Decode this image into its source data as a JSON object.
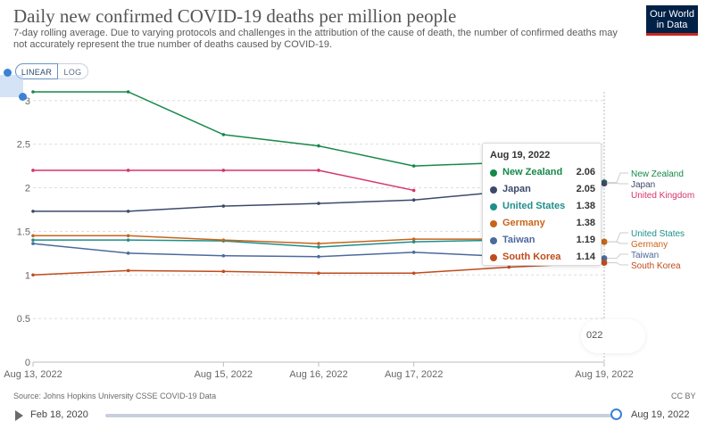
{
  "header": {
    "title": "Daily new confirmed COVID-19 deaths per million people",
    "subtitle": "7-day rolling average. Due to varying protocols and challenges in the attribution of the cause of death, the number of confirmed deaths may not accurately represent the true number of deaths caused by COVID-19.",
    "logo_line1": "Our World",
    "logo_line2": "in Data"
  },
  "controls": {
    "linear_label": "LINEAR",
    "log_label": "LOG",
    "active": "LINEAR"
  },
  "footer": {
    "source": "Source: Johns Hopkins University CSSE COVID-19 Data",
    "license": "CC BY"
  },
  "timeline": {
    "start_label": "Feb 18, 2020",
    "end_label": "Aug 19, 2022"
  },
  "tooltip": {
    "date": "Aug 19, 2022",
    "rows": [
      {
        "name": "New Zealand",
        "value": "2.06",
        "color": "#17884a"
      },
      {
        "name": "Japan",
        "value": "2.05",
        "color": "#3b4a6b"
      },
      {
        "name": "United States",
        "value": "1.38",
        "color": "#1e8f8a"
      },
      {
        "name": "Germany",
        "value": "1.38",
        "color": "#c8641a"
      },
      {
        "name": "Taiwan",
        "value": "1.19",
        "color": "#4c6a9c"
      },
      {
        "name": "South Korea",
        "value": "1.14",
        "color": "#c04b1c"
      }
    ]
  },
  "scrubber": {
    "label": "022"
  },
  "chart_data": {
    "type": "line",
    "title": "Daily new confirmed COVID-19 deaths per million people",
    "x": [
      0,
      1,
      2,
      3,
      4,
      5,
      6
    ],
    "x_tick_labels": [
      {
        "x": 0,
        "label": "Aug 13, 2022"
      },
      {
        "x": 2,
        "label": "Aug 15, 2022"
      },
      {
        "x": 3,
        "label": "Aug 16, 2022"
      },
      {
        "x": 4,
        "label": "Aug 17, 2022"
      },
      {
        "x": 6,
        "label": "Aug 19, 2022"
      }
    ],
    "ylim": [
      0,
      3.1
    ],
    "y_ticks": [
      0,
      0.5,
      1,
      1.5,
      2,
      2.5,
      3
    ],
    "y_tick_labels": [
      "0",
      "0.5",
      "1",
      "1.5",
      "2",
      "2.5",
      "3"
    ],
    "grid": "horizontal-dashed",
    "series": [
      {
        "name": "New Zealand",
        "color": "#17884a",
        "values": [
          3.1,
          3.1,
          2.61,
          2.48,
          2.25,
          2.29,
          2.06
        ]
      },
      {
        "name": "United Kingdom",
        "color": "#d6336c",
        "values": [
          2.2,
          2.2,
          2.2,
          2.2,
          1.97,
          null,
          null
        ]
      },
      {
        "name": "Japan",
        "color": "#3b4a6b",
        "values": [
          1.73,
          1.73,
          1.79,
          1.82,
          1.86,
          1.96,
          2.05
        ]
      },
      {
        "name": "United States",
        "color": "#1e8f8a",
        "values": [
          1.4,
          1.4,
          1.39,
          1.32,
          1.38,
          1.4,
          1.38
        ]
      },
      {
        "name": "Germany",
        "color": "#c8641a",
        "values": [
          1.45,
          1.45,
          1.4,
          1.36,
          1.41,
          1.41,
          1.38
        ]
      },
      {
        "name": "Taiwan",
        "color": "#4c6a9c",
        "values": [
          1.36,
          1.25,
          1.22,
          1.21,
          1.26,
          1.21,
          1.19
        ]
      },
      {
        "name": "South Korea",
        "color": "#c04b1c",
        "values": [
          1.0,
          1.05,
          1.04,
          1.02,
          1.02,
          1.09,
          1.14
        ]
      }
    ],
    "end_labels": [
      {
        "text": "New Zealand",
        "color": "#17884a"
      },
      {
        "text": "Japan",
        "color": "#3b4a6b"
      },
      {
        "text": "United Kingdom",
        "color": "#d6336c"
      },
      {
        "text": "United States",
        "color": "#1e8f8a"
      },
      {
        "text": "Germany",
        "color": "#c8641a"
      },
      {
        "text": "Taiwan",
        "color": "#4c6a9c"
      },
      {
        "text": "South Korea",
        "color": "#c04b1c"
      }
    ],
    "highlight_x": 6
  }
}
